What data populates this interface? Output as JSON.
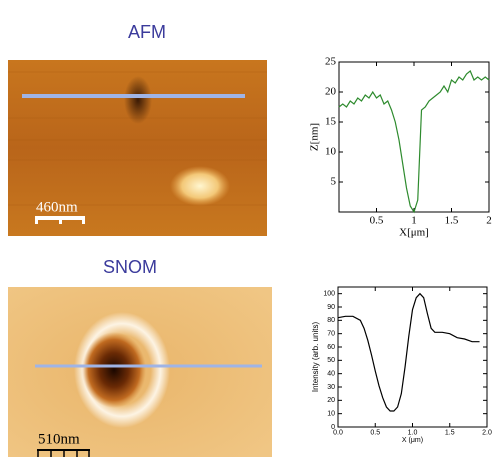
{
  "panels": [
    {
      "title": "AFM",
      "scale_bar": "460nm"
    },
    {
      "title": "SNOM",
      "scale_bar": "510nm"
    }
  ],
  "chart_data": [
    {
      "type": "line",
      "xlabel": "X[μm]",
      "ylabel": "Z[nm]",
      "x": [
        0,
        0.05,
        0.1,
        0.15,
        0.2,
        0.25,
        0.3,
        0.35,
        0.4,
        0.45,
        0.5,
        0.55,
        0.6,
        0.65,
        0.7,
        0.75,
        0.8,
        0.85,
        0.9,
        0.95,
        1.0,
        1.05,
        1.1,
        1.15,
        1.2,
        1.25,
        1.3,
        1.35,
        1.4,
        1.45,
        1.5,
        1.55,
        1.6,
        1.65,
        1.7,
        1.75,
        1.8,
        1.85,
        1.9,
        1.95,
        2.0
      ],
      "series": [
        {
          "color": "#2e8b2e",
          "values": [
            17.5,
            18,
            17.5,
            18.5,
            18,
            19,
            18.5,
            19.5,
            19,
            20,
            19,
            19.5,
            18,
            18.5,
            17,
            15,
            12,
            8,
            4,
            1,
            0,
            2,
            17,
            17.5,
            18.5,
            19,
            19.5,
            20,
            21,
            20,
            22,
            21.5,
            22.5,
            22,
            23,
            23.5,
            22,
            22.5,
            22,
            22.5,
            22
          ]
        }
      ],
      "xlim": [
        0,
        2
      ],
      "xticks": [
        0.5,
        1,
        1.5,
        2
      ],
      "ylim": [
        0,
        25
      ],
      "yticks": [
        5,
        10,
        15,
        20,
        25
      ]
    },
    {
      "type": "line",
      "xlabel": "X (μm)",
      "ylabel": "Intensity (arb. units)",
      "x": [
        0,
        0.1,
        0.2,
        0.3,
        0.35,
        0.4,
        0.45,
        0.5,
        0.55,
        0.6,
        0.65,
        0.7,
        0.75,
        0.8,
        0.85,
        0.9,
        0.95,
        1.0,
        1.05,
        1.1,
        1.15,
        1.2,
        1.25,
        1.3,
        1.4,
        1.5,
        1.6,
        1.7,
        1.8,
        1.9
      ],
      "series": [
        {
          "color": "#000000",
          "values": [
            82,
            83,
            83,
            80,
            74,
            65,
            54,
            42,
            31,
            22,
            15,
            12,
            12,
            15,
            25,
            45,
            68,
            88,
            97,
            100,
            97,
            85,
            74,
            71,
            71,
            70,
            67,
            66,
            64,
            64
          ]
        }
      ],
      "xlim": [
        0,
        2
      ],
      "xticks": [
        {
          "value": 0,
          "label": "0.0"
        },
        0.5,
        {
          "value": 1,
          "label": "1.0"
        },
        1.5,
        {
          "value": 2,
          "label": "2.0"
        }
      ],
      "ylim": [
        0,
        105
      ],
      "yticks": [
        0,
        10,
        20,
        30,
        40,
        50,
        60,
        70,
        80,
        90,
        100
      ]
    }
  ]
}
